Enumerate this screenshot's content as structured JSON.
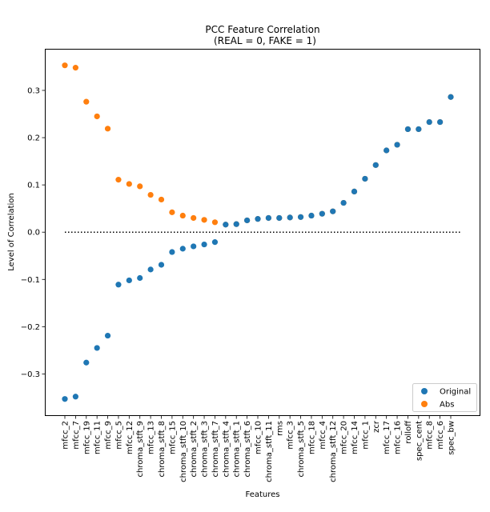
{
  "chart_data": {
    "type": "scatter",
    "title": "PCC Feature Correlation",
    "subtitle": "(REAL = 0, FAKE = 1)",
    "xlabel": "Features",
    "ylabel": "Level of Correlation",
    "ylim": [
      -0.389,
      0.388
    ],
    "yticks": [
      -0.3,
      -0.2,
      -0.1,
      0.0,
      0.1,
      0.2,
      0.3
    ],
    "ytick_labels": [
      "−0.3",
      "−0.2",
      "−0.1",
      "0.0",
      "0.1",
      "0.2",
      "0.3"
    ],
    "grid": false,
    "legend_position": "bottom-right",
    "reference_line": {
      "y": 0.0,
      "style": "dotted",
      "color": "#000000"
    },
    "categories": [
      "mfcc_2",
      "mfcc_7",
      "mfcc_19",
      "mfcc_11",
      "mfcc_9",
      "mfcc_5",
      "mfcc_12",
      "chroma_stft_9",
      "mfcc_13",
      "chroma_stft_8",
      "mfcc_15",
      "chroma_stft_10",
      "chroma_stft_2",
      "chroma_stft_3",
      "chroma_stft_7",
      "chroma_stft_4",
      "chroma_stft_1",
      "chroma_stft_6",
      "mfcc_10",
      "chroma_stft_11",
      "rms",
      "mfcc_3",
      "chroma_stft_5",
      "mfcc_18",
      "mfcc_4",
      "chroma_stft_12",
      "mfcc_20",
      "mfcc_14",
      "mfcc_1",
      "zcr",
      "mfcc_17",
      "mfcc_16",
      "rolloff",
      "spec_cent",
      "mfcc_8",
      "mfcc_6",
      "spec_bw"
    ],
    "series": [
      {
        "name": "Original",
        "color": "#1f77b4",
        "values": [
          -0.353,
          -0.348,
          -0.276,
          -0.245,
          -0.219,
          -0.111,
          -0.102,
          -0.097,
          -0.079,
          -0.069,
          -0.042,
          -0.035,
          -0.03,
          -0.026,
          -0.021,
          0.016,
          0.017,
          0.025,
          0.028,
          0.03,
          0.03,
          0.031,
          0.032,
          0.035,
          0.039,
          0.044,
          0.062,
          0.086,
          0.113,
          0.142,
          0.173,
          0.185,
          0.218,
          0.218,
          0.233,
          0.233,
          0.286
        ]
      },
      {
        "name": "Abs",
        "color": "#ff7f0e",
        "values": [
          0.353,
          0.348,
          0.276,
          0.245,
          0.219,
          0.111,
          0.102,
          0.097,
          0.079,
          0.069,
          0.042,
          0.035,
          0.03,
          0.026,
          0.021,
          0.016,
          0.017,
          0.025,
          0.028,
          0.03,
          0.03,
          0.031,
          0.032,
          0.035,
          0.039,
          0.044,
          0.062,
          0.086,
          0.113,
          0.142,
          0.173,
          0.185,
          0.218,
          0.218,
          0.233,
          0.233,
          0.286
        ]
      }
    ]
  }
}
